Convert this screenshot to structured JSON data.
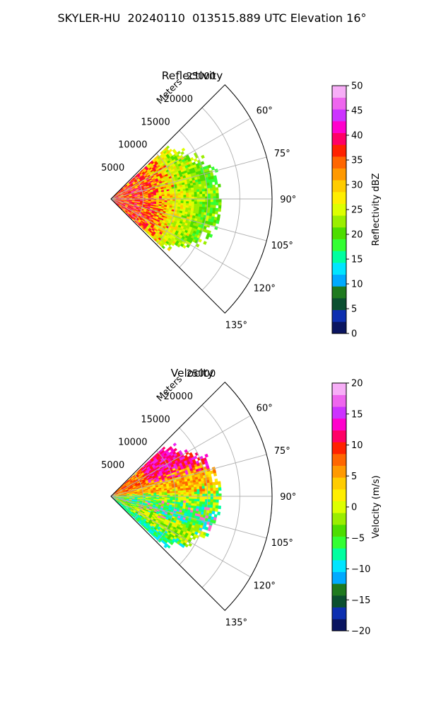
{
  "figure": {
    "title": "SKYLER-HU  20240110  013515.889 UTC Elevation 16°"
  },
  "chart_data": [
    {
      "type": "heatmap",
      "projection": "polar-sector",
      "title": "Reflectivity",
      "radial_label": "Meters",
      "radial_ticks": [
        5000,
        10000,
        15000,
        20000,
        25000
      ],
      "radial_tick_labels": [
        "5000",
        "10000",
        "15000",
        "20000",
        "25000"
      ],
      "rlim": [
        0,
        25000
      ],
      "azimuth_ticks": [
        60,
        75,
        90,
        105,
        120,
        135
      ],
      "azimuth_tick_labels": [
        "60°",
        "75°",
        "90°",
        "105°",
        "120°",
        "135°"
      ],
      "azimuth_range": [
        45,
        135
      ],
      "grid": true,
      "data_extent_m": 17000,
      "colorbar": {
        "label": "Reflectivity dBZ",
        "range": [
          0,
          50
        ],
        "ticks": [
          0,
          5,
          10,
          15,
          20,
          25,
          30,
          35,
          40,
          45,
          50
        ],
        "tick_labels": [
          "0",
          "5",
          "10",
          "15",
          "20",
          "25",
          "30",
          "35",
          "40",
          "45",
          "50"
        ],
        "colors": [
          "#0a1560",
          "#0d2fb0",
          "#0b4f30",
          "#1f7a1f",
          "#00aaff",
          "#00e5ff",
          "#00ffa0",
          "#33ff33",
          "#4ddd00",
          "#9aee00",
          "#ddff00",
          "#ffee00",
          "#ffcc00",
          "#ff9900",
          "#ff6600",
          "#ff2200",
          "#ff0066",
          "#ff00cc",
          "#cc33ff",
          "#ee66ee",
          "#f7aef7"
        ]
      }
    },
    {
      "type": "heatmap",
      "projection": "polar-sector",
      "title": "Velocity",
      "radial_label": "Meters",
      "radial_ticks": [
        5000,
        10000,
        15000,
        20000,
        25000
      ],
      "radial_tick_labels": [
        "5000",
        "10000",
        "15000",
        "20000",
        "25000"
      ],
      "rlim": [
        0,
        25000
      ],
      "azimuth_ticks": [
        60,
        75,
        90,
        105,
        120,
        135
      ],
      "azimuth_tick_labels": [
        "60°",
        "75°",
        "90°",
        "105°",
        "120°",
        "135°"
      ],
      "azimuth_range": [
        45,
        135
      ],
      "grid": true,
      "data_extent_m": 17000,
      "colorbar": {
        "label": "Velocity (m/s)",
        "range": [
          -20,
          20
        ],
        "ticks": [
          -20,
          -15,
          -10,
          -5,
          0,
          5,
          10,
          15,
          20
        ],
        "tick_labels": [
          "−20",
          "−15",
          "−10",
          "−5",
          "0",
          "5",
          "10",
          "15",
          "20"
        ],
        "colors": [
          "#0a1560",
          "#0d2fb0",
          "#0b4f30",
          "#1f7a1f",
          "#00aaff",
          "#00e5ff",
          "#00ffa0",
          "#33ff33",
          "#4ddd00",
          "#9aee00",
          "#ddff00",
          "#ffee00",
          "#ffcc00",
          "#ff9900",
          "#ff6600",
          "#ff2200",
          "#ff0066",
          "#ff00cc",
          "#cc33ff",
          "#ee66ee",
          "#f7aef7"
        ]
      }
    }
  ]
}
